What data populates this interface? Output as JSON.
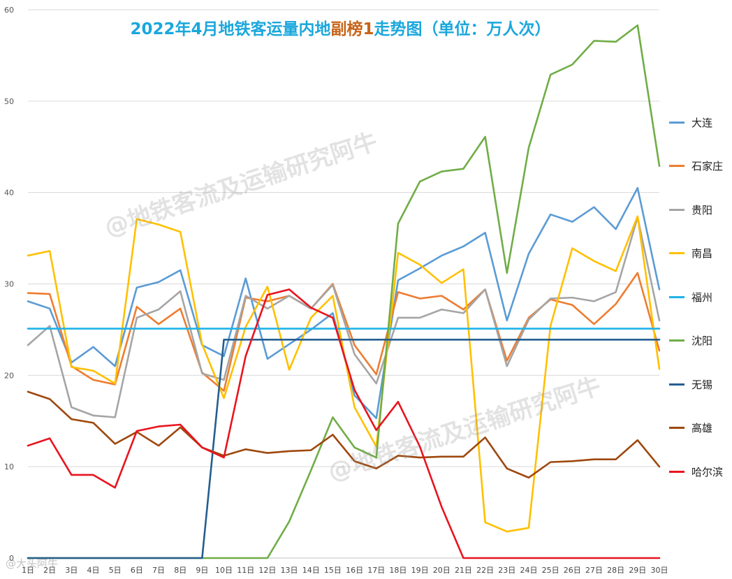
{
  "chart_data": {
    "type": "line",
    "title_main": "2022年4月地铁客运量内地",
    "title_highlight": "副榜1",
    "title_tail": "走势图（单位：万人次）",
    "xlabel": "",
    "ylabel": "",
    "ylim": [
      0,
      60
    ],
    "yticks": [
      0,
      10,
      20,
      30,
      40,
      50,
      60
    ],
    "grid": true,
    "legend_position": "right",
    "categories": [
      "1日",
      "2日",
      "3日",
      "4日",
      "5日",
      "6日",
      "7日",
      "8日",
      "9日",
      "10日",
      "11日",
      "12日",
      "13日",
      "14日",
      "15日",
      "16日",
      "17日",
      "18日",
      "19日",
      "20日",
      "21日",
      "22日",
      "23日",
      "24日",
      "25日",
      "26日",
      "27日",
      "28日",
      "29日",
      "30日"
    ],
    "series": [
      {
        "name": "大连",
        "color": "#5b9bd5",
        "values": [
          28.1,
          27.3,
          21.4,
          23.1,
          21.0,
          29.6,
          30.2,
          31.5,
          23.3,
          22.1,
          30.6,
          21.8,
          23.4,
          25.0,
          26.8,
          17.8,
          15.3,
          30.4,
          31.7,
          33.1,
          34.1,
          35.6,
          26.0,
          33.3,
          37.6,
          36.8,
          38.4,
          36.0,
          40.5,
          29.4
        ]
      },
      {
        "name": "石家庄",
        "color": "#ed7d31",
        "values": [
          29.0,
          28.9,
          21.0,
          19.5,
          19.0,
          27.5,
          25.6,
          27.3,
          20.3,
          18.3,
          28.5,
          28.1,
          28.7,
          27.3,
          30.0,
          23.3,
          20.1,
          29.1,
          28.4,
          28.7,
          27.2,
          29.4,
          21.6,
          26.3,
          28.3,
          27.7,
          25.6,
          27.8,
          31.2,
          22.7
        ]
      },
      {
        "name": "贵阳",
        "color": "#a5a5a5",
        "values": [
          23.3,
          25.4,
          16.5,
          15.6,
          15.4,
          26.3,
          27.2,
          29.2,
          20.2,
          19.5,
          28.7,
          27.3,
          28.7,
          27.3,
          29.9,
          22.3,
          19.1,
          26.3,
          26.3,
          27.2,
          26.8,
          29.4,
          21.0,
          26.1,
          28.4,
          28.5,
          28.1,
          29.1,
          37.3,
          26.0
        ]
      },
      {
        "name": "南昌",
        "color": "#ffc000",
        "values": [
          33.1,
          33.6,
          20.9,
          20.5,
          19.1,
          37.1,
          36.5,
          35.7,
          23.4,
          17.5,
          25.3,
          29.7,
          20.6,
          26.3,
          28.7,
          16.5,
          12.2,
          33.4,
          32.1,
          30.1,
          31.6,
          3.9,
          2.9,
          3.3,
          25.4,
          33.9,
          32.5,
          31.4,
          37.4,
          20.7
        ]
      },
      {
        "name": "福州",
        "color": "#1fb2e8",
        "values": [
          25.1,
          25.1,
          25.1,
          25.1,
          25.1,
          25.1,
          25.1,
          25.1,
          25.1,
          25.1,
          25.1,
          25.1,
          25.1,
          25.1,
          25.1,
          25.1,
          25.1,
          25.1,
          25.1,
          25.1,
          25.1,
          25.1,
          25.1,
          25.1,
          25.1,
          25.1,
          25.1,
          25.1,
          25.1,
          25.1
        ]
      },
      {
        "name": "沈阳",
        "color": "#70ad47",
        "values": [
          0,
          0,
          0,
          0,
          0,
          0,
          0,
          0,
          0,
          0,
          0,
          0,
          4.0,
          9.6,
          15.4,
          12.1,
          11.0,
          36.6,
          41.2,
          42.3,
          42.6,
          46.1,
          31.2,
          44.9,
          52.9,
          54.0,
          56.6,
          56.5,
          58.3,
          42.9
        ]
      },
      {
        "name": "无锡",
        "color": "#255e91",
        "values": [
          0,
          0,
          0,
          0,
          0,
          0,
          0,
          0,
          0,
          23.9,
          23.9,
          23.9,
          23.9,
          23.9,
          23.9,
          23.9,
          23.9,
          23.9,
          23.9,
          23.9,
          23.9,
          23.9,
          23.9,
          23.9,
          23.9,
          23.9,
          23.9,
          23.9,
          23.9,
          23.9
        ]
      },
      {
        "name": "高雄",
        "color": "#9e480e",
        "values": [
          18.2,
          17.4,
          15.2,
          14.8,
          12.5,
          13.8,
          12.3,
          14.3,
          12.1,
          11.2,
          11.9,
          11.5,
          11.7,
          11.8,
          13.5,
          10.6,
          9.8,
          11.2,
          11.0,
          11.1,
          11.1,
          13.2,
          9.8,
          8.8,
          10.5,
          10.6,
          10.8,
          10.8,
          12.9,
          10.0
        ]
      },
      {
        "name": "哈尔滨",
        "color": "#e8141e",
        "values": [
          12.3,
          13.1,
          9.1,
          9.1,
          7.7,
          13.9,
          14.4,
          14.6,
          12.1,
          11.0,
          22.1,
          28.8,
          29.4,
          27.4,
          26.3,
          18.4,
          14.0,
          17.1,
          12.2,
          5.6,
          0,
          0,
          0,
          0,
          0,
          0,
          0,
          0,
          0,
          0
        ]
      }
    ]
  },
  "watermark": {
    "text": "@地铁客流及运输研究阿牛",
    "corner_text": "@大头阿牛"
  }
}
